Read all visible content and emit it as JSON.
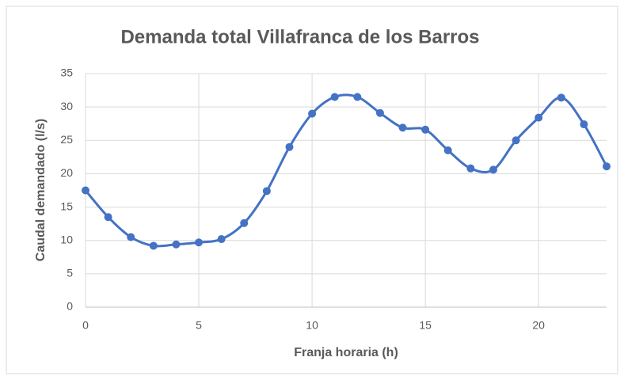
{
  "chart_data": {
    "type": "line",
    "title": "Demanda total Villafranca de los Barros",
    "x_label": "Franja horaria (h)",
    "y_label": "Caudal demandado (l/s)",
    "x": [
      0,
      1,
      2,
      3,
      4,
      5,
      6,
      7,
      8,
      9,
      10,
      11,
      12,
      13,
      14,
      15,
      16,
      17,
      18,
      19,
      20,
      21,
      22,
      23
    ],
    "series": [
      {
        "name": "Demanda",
        "color": "#4472c4",
        "values": [
          17.5,
          13.5,
          10.5,
          9.2,
          9.4,
          9.7,
          10.2,
          12.6,
          17.4,
          24,
          29,
          31.5,
          31.5,
          29.1,
          26.9,
          26.6,
          23.5,
          20.8,
          20.6,
          25,
          28.4,
          31.4,
          27.4,
          21.1
        ]
      }
    ],
    "xlim": [
      0,
      23
    ],
    "xticks": [
      0,
      5,
      10,
      15,
      20
    ],
    "ylim": [
      0,
      35
    ],
    "yticks": [
      0,
      5,
      10,
      15,
      20,
      25,
      30,
      35
    ],
    "grid": true,
    "smooth": true
  }
}
